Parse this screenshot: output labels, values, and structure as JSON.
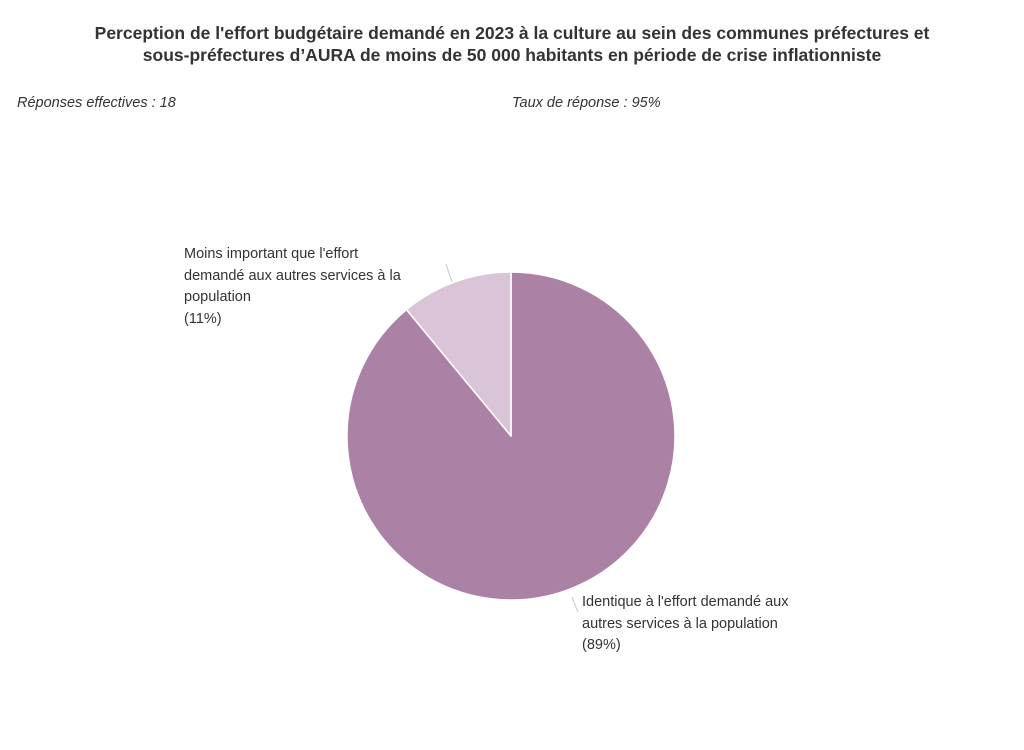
{
  "title_lines": [
    "Perception de l'effort budgétaire demandé en 2023 à la culture au sein des communes préfectures et",
    "sous-préfectures d’AURA de moins de 50 000 habitants en période de crise inflationniste"
  ],
  "responses": "Réponses effectives : 18",
  "response_rate": "Taux de réponse : 95%",
  "chart_data": {
    "type": "pie",
    "title": "Perception de l'effort budgétaire demandé en 2023 à la culture au sein des communes préfectures et sous-préfectures d’AURA de moins de 50 000 habitants en période de crise inflationniste",
    "slices": [
      {
        "label_lines": [
          "Identique à l'effort demandé aux",
          "autres services à la population"
        ],
        "percent_text": "(89%)",
        "value": 89,
        "color": "#ab81a5"
      },
      {
        "label_lines": [
          "Moins important que l'effort",
          "demandé aux autres services à la",
          "population"
        ],
        "percent_text": "(11%)",
        "value": 11,
        "color": "#dac4d7"
      }
    ],
    "legend": "none"
  }
}
